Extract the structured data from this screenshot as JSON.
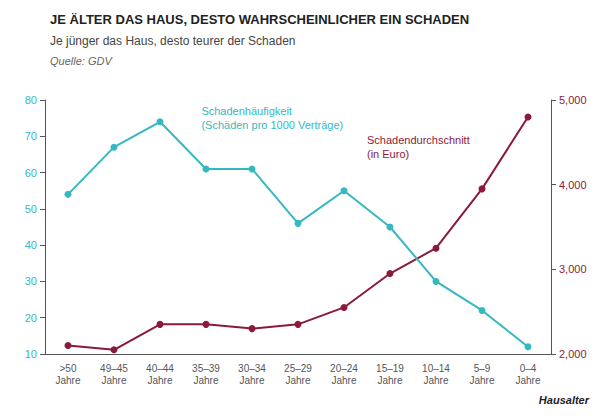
{
  "chart_data": {
    "type": "line",
    "title": "JE ÄLTER DAS HAUS, DESTO WAHRSCHEINLICHER EIN SCHADEN",
    "subtitle": "Je jünger das Haus, desto teurer der Schaden",
    "source": "Quelle: GDV",
    "xlabel": "Hausalter",
    "categories": [
      ">50\nJahre",
      "49–45\nJahre",
      "40–44\nJahre",
      "35–39\nJahre",
      "30–34\nJahre",
      "25–29\nJahre",
      "20–24\nJahre",
      "15–19\nJahre",
      "10–14\nJahre",
      "5–9\nJahre",
      "0–4\nJahre"
    ],
    "series": [
      {
        "name": "Schadenhäufigkeit\n(Schäden pro 1000 Verträge)",
        "color": "#35B8C0",
        "marker": "circle",
        "values": [
          54,
          67,
          74,
          61,
          61,
          46,
          55,
          45,
          30,
          22,
          12
        ]
      },
      {
        "name": "Schadendurchschnitt\n(in Euro)",
        "color": "#8B1A3A",
        "marker": "circle",
        "axis": "y2",
        "values": [
          2100,
          2050,
          2350,
          2350,
          2300,
          2350,
          2550,
          2950,
          3250,
          3950,
          4800
        ]
      }
    ],
    "ylim": [
      10,
      80
    ],
    "yticks": [
      10,
      20,
      30,
      40,
      50,
      60,
      70,
      80
    ],
    "y2lim": [
      2000,
      5000
    ],
    "y2ticks": [
      2000,
      3000,
      4000,
      5000
    ],
    "grid": false
  }
}
